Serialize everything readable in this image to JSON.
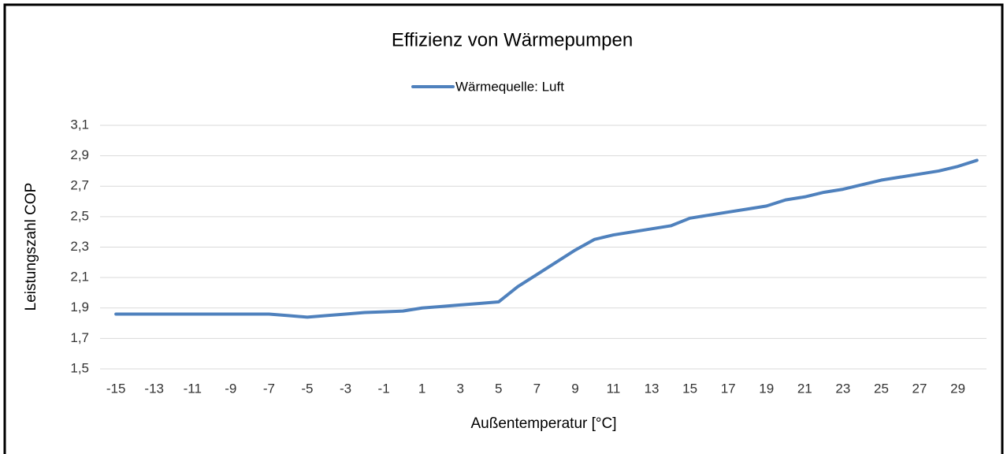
{
  "chart_data": {
    "type": "line",
    "title": "Effizienz von Wärmepumpen",
    "x_label": "Außentemperatur [°C]",
    "y_label": "Leistungszahl COP",
    "categories": [
      -15,
      null,
      -13,
      null,
      -11,
      null,
      -9,
      null,
      -7,
      null,
      -5,
      null,
      -3,
      null,
      -1,
      null,
      1,
      null,
      3,
      null,
      5,
      null,
      7,
      null,
      9,
      null,
      11,
      null,
      13,
      null,
      15,
      null,
      17,
      null,
      19,
      null,
      21,
      null,
      23,
      null,
      25,
      null,
      27,
      null,
      29,
      null
    ],
    "series": [
      {
        "name": "Wärmequelle: Luft",
        "color": "#4f81bd",
        "values": [
          1.86,
          1.86,
          1.86,
          1.86,
          1.86,
          1.86,
          1.86,
          1.86,
          1.86,
          1.85,
          1.84,
          1.85,
          1.86,
          1.87,
          1.875,
          1.88,
          1.9,
          1.91,
          1.92,
          1.93,
          1.94,
          2.04,
          2.12,
          2.2,
          2.28,
          2.35,
          2.38,
          2.4,
          2.42,
          2.44,
          2.49,
          2.51,
          2.53,
          2.55,
          2.57,
          2.61,
          2.63,
          2.66,
          2.68,
          2.71,
          2.74,
          2.76,
          2.78,
          2.8,
          2.83,
          2.87
        ]
      }
    ],
    "ylim": [
      1.5,
      3.1
    ],
    "yticks": [
      {
        "value": 1.5,
        "label": "1,5"
      },
      {
        "value": 1.7,
        "label": "1,7"
      },
      {
        "value": 1.9,
        "label": "1,9"
      },
      {
        "value": 2.1,
        "label": "2,1"
      },
      {
        "value": 2.3,
        "label": "2,3"
      },
      {
        "value": 2.5,
        "label": "2,5"
      },
      {
        "value": 2.7,
        "label": "2,7"
      },
      {
        "value": 2.9,
        "label": "2,9"
      },
      {
        "value": 3.1,
        "label": "3,1"
      }
    ],
    "grid": true,
    "legend": "top"
  }
}
